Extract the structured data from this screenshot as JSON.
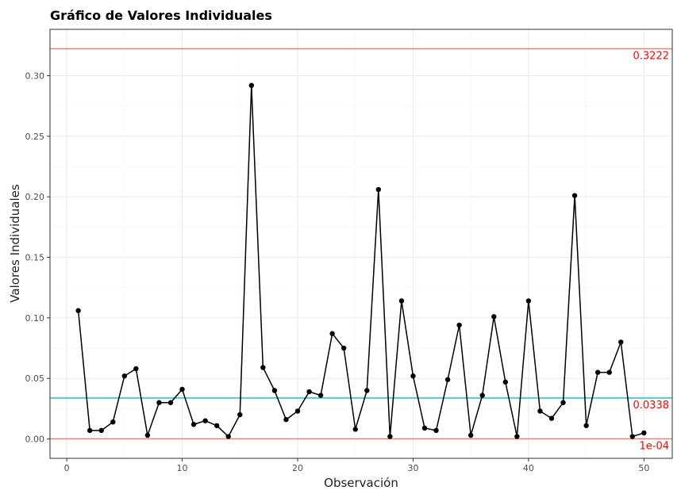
{
  "chart_data": {
    "type": "line",
    "title": "Gráfico de Valores Individuales",
    "xlabel": "Observación",
    "ylabel": "Valores Individuales",
    "xlim": [
      -1.45,
      52.45
    ],
    "ylim": [
      -0.016,
      0.3383
    ],
    "x_ticks": [
      0,
      10,
      20,
      30,
      40,
      50
    ],
    "x_tick_labels": [
      "0",
      "10",
      "20",
      "30",
      "40",
      "50"
    ],
    "y_ticks": [
      0.0,
      0.05,
      0.1,
      0.15,
      0.2,
      0.25,
      0.3
    ],
    "y_tick_labels": [
      "0.00",
      "0.05",
      "0.10",
      "0.15",
      "0.20",
      "0.25",
      "0.30"
    ],
    "grid": true,
    "series": [
      {
        "x": [
          1,
          2,
          3,
          4,
          5,
          6,
          7,
          8,
          9,
          10,
          11,
          12,
          13,
          14,
          15,
          16,
          17,
          18,
          19,
          20,
          21,
          22,
          23,
          24,
          25,
          26,
          27,
          28,
          29,
          30,
          31,
          32,
          33,
          34,
          35,
          36,
          37,
          38,
          39,
          40,
          41,
          42,
          43,
          44,
          45,
          46,
          47,
          48,
          49,
          50
        ],
        "values": [
          0.106,
          0.007,
          0.007,
          0.014,
          0.052,
          0.058,
          0.003,
          0.03,
          0.03,
          0.041,
          0.012,
          0.015,
          0.011,
          0.002,
          0.02,
          0.292,
          0.059,
          0.04,
          0.016,
          0.023,
          0.039,
          0.036,
          0.087,
          0.075,
          0.008,
          0.04,
          0.206,
          0.002,
          0.114,
          0.052,
          0.009,
          0.007,
          0.049,
          0.094,
          0.003,
          0.036,
          0.101,
          0.047,
          0.002,
          0.114,
          0.023,
          0.017,
          0.03,
          0.201,
          0.011,
          0.055,
          0.055,
          0.08,
          0.002,
          0.005
        ],
        "color": "#000000"
      }
    ],
    "reference_lines": [
      {
        "value": 0.3222,
        "label": "0.3222",
        "color": "#F8766D",
        "label_color": "#FF0000"
      },
      {
        "value": 0.0338,
        "label": "0.0338",
        "color": "#00BFC4",
        "label_color": "#FF0000"
      },
      {
        "value": 0.0001,
        "label": "1e-04",
        "color": "#F8766D",
        "label_color": "#FF0000"
      }
    ]
  }
}
